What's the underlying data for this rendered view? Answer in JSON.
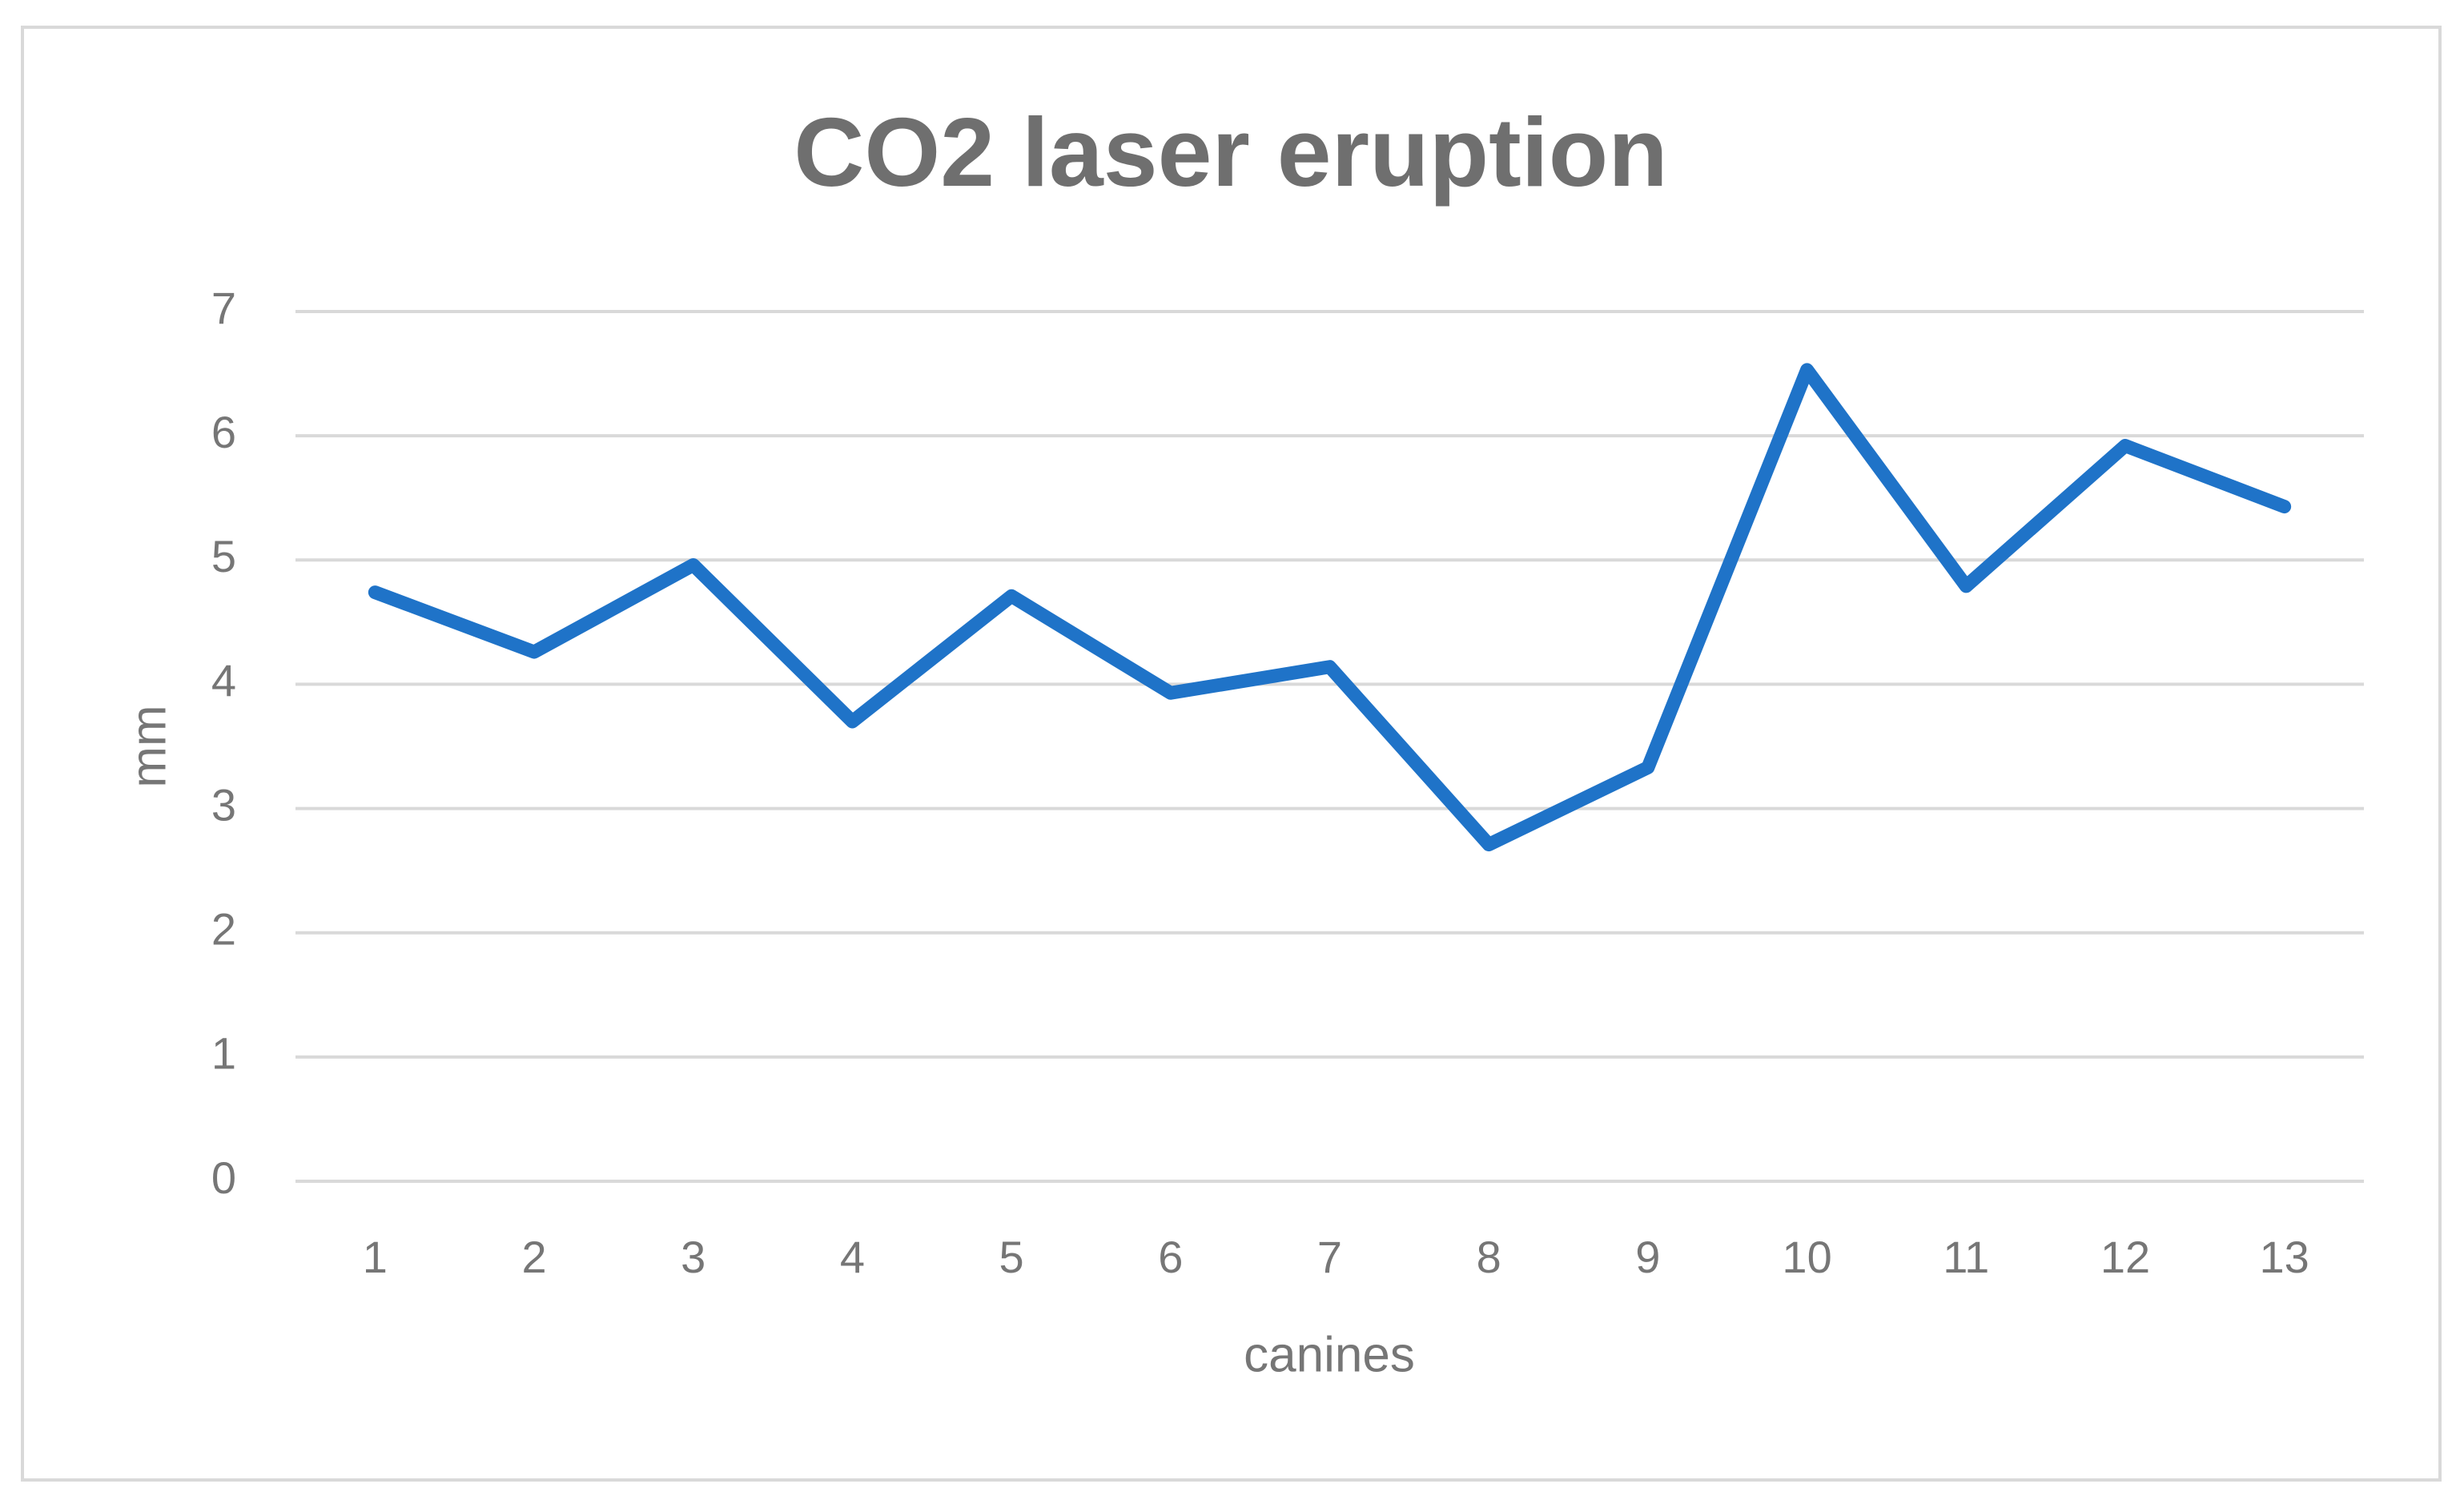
{
  "chart_data": {
    "type": "line",
    "title": "CO2 laser eruption",
    "x_label": "canines",
    "y_label": "mm",
    "categories": [
      "1",
      "2",
      "3",
      "4",
      "5",
      "6",
      "7",
      "8",
      "9",
      "10",
      "11",
      "12",
      "13"
    ],
    "values": [
      4.74,
      4.26,
      4.96,
      3.7,
      4.71,
      3.93,
      4.14,
      2.71,
      3.33,
      6.53,
      4.79,
      5.92,
      5.43
    ],
    "color": "#1f73c8",
    "ylim": [
      0,
      7
    ],
    "yticks": [
      0,
      1,
      2,
      3,
      4,
      5,
      6,
      7
    ],
    "grid": true
  }
}
